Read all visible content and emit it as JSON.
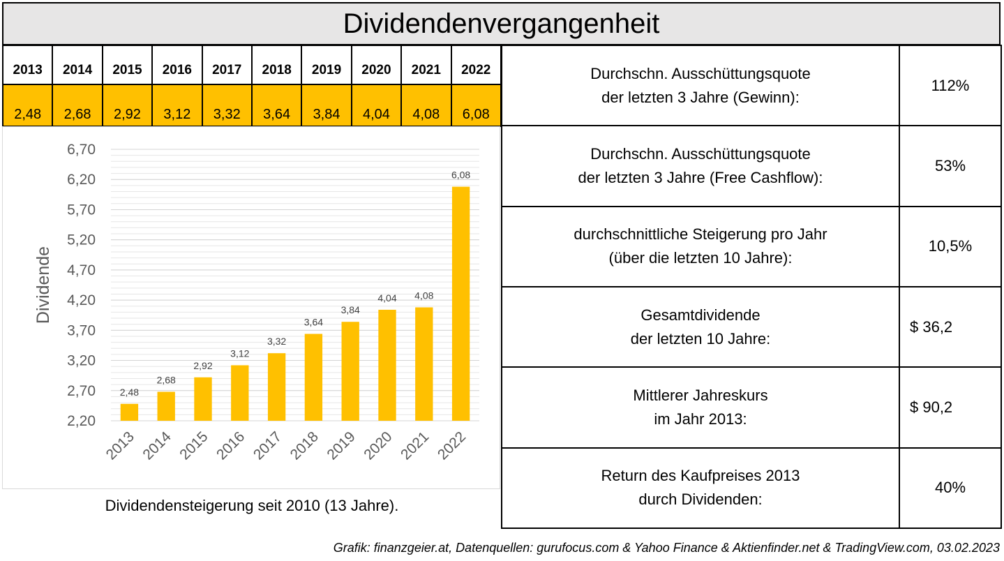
{
  "header": {
    "title": "Dividendenvergangenheit"
  },
  "year_table": {
    "years": [
      "2013",
      "2014",
      "2015",
      "2016",
      "2017",
      "2018",
      "2019",
      "2020",
      "2021",
      "2022"
    ],
    "values": [
      "2,48",
      "2,68",
      "2,92",
      "3,12",
      "3,32",
      "3,64",
      "3,84",
      "4,04",
      "4,08",
      "6,08"
    ]
  },
  "chart_data": {
    "type": "bar",
    "categories": [
      "2013",
      "2014",
      "2015",
      "2016",
      "2017",
      "2018",
      "2019",
      "2020",
      "2021",
      "2022"
    ],
    "values": [
      2.48,
      2.68,
      2.92,
      3.12,
      3.32,
      3.64,
      3.84,
      4.04,
      4.08,
      6.08
    ],
    "value_labels": [
      "2,48",
      "2,68",
      "2,92",
      "3,12",
      "3,32",
      "3,64",
      "3,84",
      "4,04",
      "4,08",
      "6,08"
    ],
    "ylabel": "Dividende",
    "ylim": [
      2.2,
      6.7
    ],
    "yticks": [
      2.2,
      2.7,
      3.2,
      3.7,
      4.2,
      4.7,
      5.2,
      5.7,
      6.2,
      6.7
    ],
    "ytick_labels": [
      "2,20",
      "2,70",
      "3,20",
      "3,70",
      "4,20",
      "4,70",
      "5,20",
      "5,70",
      "6,20",
      "6,70"
    ],
    "grid": true,
    "bar_color": "#ffc000"
  },
  "chart_caption": "Dividendensteigerung seit 2010 (13 Jahre).",
  "metrics": [
    {
      "label_lines": [
        "Durchschn. Ausschüttungsquote",
        "der letzten 3 Jahre (Gewinn):"
      ],
      "value": "112%"
    },
    {
      "label_lines": [
        "Durchschn. Ausschüttungsquote",
        "der letzten 3 Jahre (Free Cashflow):"
      ],
      "value": "53%"
    },
    {
      "label_lines": [
        "durchschnittliche Steigerung pro Jahr",
        "(über die letzten 10 Jahre):"
      ],
      "value": "10,5%"
    },
    {
      "label_lines": [
        "Gesamtdividende",
        "der letzten 10 Jahre:"
      ],
      "value": "$ 36,2"
    },
    {
      "label_lines": [
        "Mittlerer Jahreskurs",
        "im Jahr 2013:"
      ],
      "value": "$ 90,2"
    },
    {
      "label_lines": [
        "Return des Kaufpreises 2013",
        "durch Dividenden:"
      ],
      "value": "40%"
    }
  ],
  "source_note": "Grafik: finanzgeier.at, Datenquellen: gurufocus.com & Yahoo Finance & Aktienfinder.net & TradingView.com, 03.02.2023"
}
